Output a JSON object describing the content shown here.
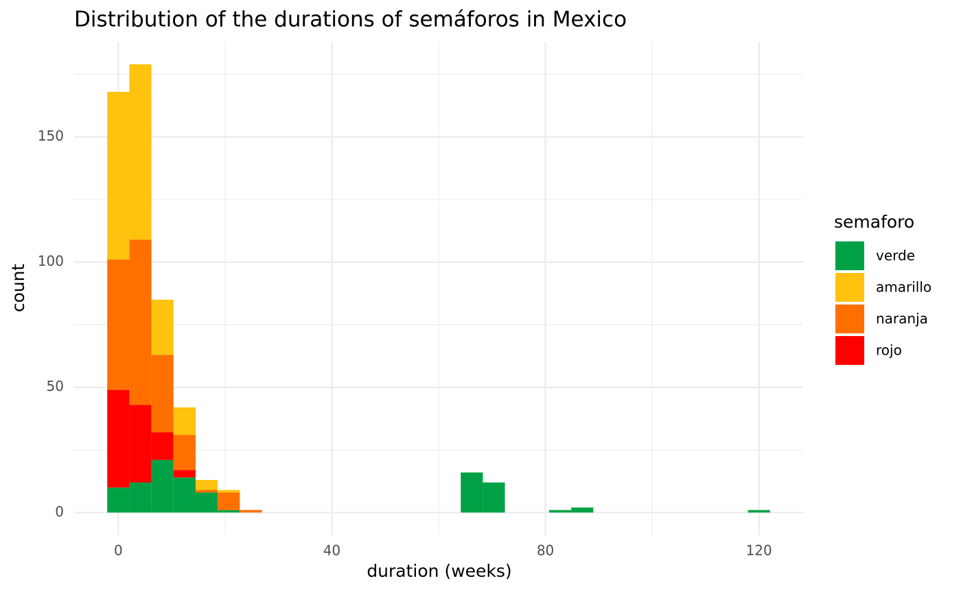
{
  "chart_data": {
    "type": "histogram",
    "title": "Distribution of the durations of semáforos in Mexico",
    "x_label": "duration (weeks)",
    "y_label": "count",
    "legend_title": "semaforo",
    "bins": [
      -2.07,
      2.07,
      6.21,
      10.34,
      14.48,
      18.62,
      22.76,
      26.9,
      31.03,
      35.17,
      39.31,
      43.45,
      47.59,
      51.72,
      55.86,
      60,
      64.14,
      68.28,
      72.41,
      76.55,
      80.69,
      84.83,
      88.97,
      93.1,
      97.24,
      101.38,
      105.52,
      109.66,
      113.79,
      117.93,
      122.07
    ],
    "series": [
      {
        "name": "verde",
        "color": "#00a144",
        "values": [
          10,
          12,
          21,
          14,
          8,
          1,
          0,
          0,
          0,
          0,
          0,
          0,
          0,
          0,
          0,
          0,
          16,
          12,
          0,
          0,
          1,
          2,
          0,
          0,
          0,
          0,
          0,
          0,
          0,
          1
        ]
      },
      {
        "name": "rojo",
        "color": "#ff0000",
        "values": [
          39,
          31,
          11,
          3,
          0,
          0,
          0,
          0,
          0,
          0,
          0,
          0,
          0,
          0,
          0,
          0,
          0,
          0,
          0,
          0,
          0,
          0,
          0,
          0,
          0,
          0,
          0,
          0,
          0,
          0
        ]
      },
      {
        "name": "naranja",
        "color": "#ff7000",
        "values": [
          52,
          66,
          31,
          14,
          1,
          7,
          1,
          0,
          0,
          0,
          0,
          0,
          0,
          0,
          0,
          0,
          0,
          0,
          0,
          0,
          0,
          0,
          0,
          0,
          0,
          0,
          0,
          0,
          0,
          0
        ]
      },
      {
        "name": "amarillo",
        "color": "#ffc30f",
        "values": [
          67,
          70,
          22,
          11,
          4,
          1,
          0,
          0,
          0,
          0,
          0,
          0,
          0,
          0,
          0,
          0,
          0,
          0,
          0,
          0,
          0,
          0,
          0,
          0,
          0,
          0,
          0,
          0,
          0,
          0
        ]
      }
    ],
    "stacked": true,
    "legend_order": [
      0,
      3,
      2,
      1
    ],
    "legend_position": "right",
    "xlim": [
      -8.27,
      128.27
    ],
    "ylim": [
      -8.95,
      187.95
    ],
    "xticks": [
      0,
      40,
      80,
      120
    ],
    "yticks": [
      0,
      50,
      100,
      150
    ],
    "xminorticks": [
      20,
      60,
      100
    ],
    "yminorticks": [
      25,
      75,
      125,
      175
    ],
    "grid": true
  }
}
